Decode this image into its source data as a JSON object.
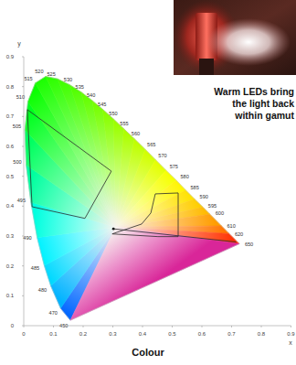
{
  "chart_data": {
    "type": "chromaticity",
    "title": "Colour",
    "x_label": "x",
    "y_label": "y",
    "annotation": [
      "Warm LEDs bring",
      "the light back",
      "within gamut"
    ],
    "xlim": [
      0,
      0.9
    ],
    "ylim": [
      0,
      0.9
    ],
    "xticks": [
      0,
      0.1,
      0.2,
      0.3,
      0.4,
      0.5,
      0.6,
      0.7,
      0.8,
      0.9
    ],
    "yticks": [
      0,
      0.1,
      0.2,
      0.3,
      0.4,
      0.5,
      0.6,
      0.7,
      0.8,
      0.9
    ],
    "spectral_locus": {
      "wavelengths": [
        450,
        470,
        480,
        485,
        490,
        495,
        500,
        505,
        510,
        515,
        520,
        525,
        530,
        535,
        540,
        545,
        550,
        555,
        560,
        565,
        570,
        575,
        580,
        585,
        590,
        595,
        600,
        610,
        620,
        650
      ],
      "x": [
        0.157,
        0.124,
        0.091,
        0.069,
        0.045,
        0.024,
        0.008,
        0.004,
        0.014,
        0.039,
        0.074,
        0.114,
        0.155,
        0.193,
        0.23,
        0.266,
        0.302,
        0.337,
        0.373,
        0.409,
        0.444,
        0.479,
        0.513,
        0.545,
        0.575,
        0.603,
        0.627,
        0.666,
        0.692,
        0.726
      ],
      "y": [
        0.018,
        0.058,
        0.133,
        0.201,
        0.295,
        0.413,
        0.538,
        0.655,
        0.75,
        0.812,
        0.834,
        0.826,
        0.806,
        0.782,
        0.754,
        0.724,
        0.692,
        0.659,
        0.625,
        0.59,
        0.555,
        0.52,
        0.487,
        0.454,
        0.424,
        0.397,
        0.373,
        0.334,
        0.308,
        0.274
      ]
    },
    "regions": [
      {
        "x": [
          0.012,
          0.295,
          0.206,
          0.028
        ],
        "y": [
          0.723,
          0.517,
          0.359,
          0.398
        ]
      },
      {
        "x": [
          0.298,
          0.397,
          0.428,
          0.443,
          0.52,
          0.52,
          0.452
        ],
        "y": [
          0.307,
          0.34,
          0.377,
          0.441,
          0.444,
          0.298,
          0.298
        ]
      },
      {
        "x": [
          0.302,
          0.715
        ],
        "y": [
          0.324,
          0.28
        ]
      }
    ],
    "points": {
      "x": [
        0.302
      ],
      "y": [
        0.324
      ]
    }
  }
}
